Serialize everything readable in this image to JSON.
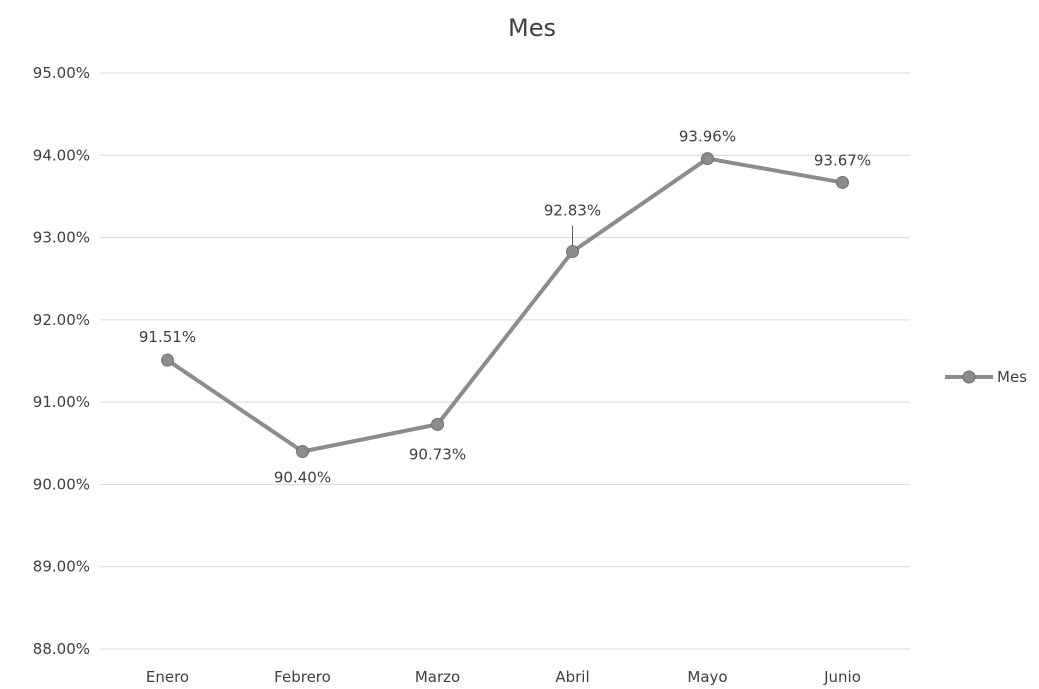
{
  "chart_data": {
    "type": "line",
    "title": "Mes",
    "xlabel": "",
    "ylabel": "",
    "categories": [
      "Enero",
      "Febrero",
      "Marzo",
      "Abril",
      "Mayo",
      "Junio"
    ],
    "series": [
      {
        "name": "Mes",
        "values": [
          91.51,
          90.4,
          90.73,
          92.83,
          93.96,
          93.67
        ],
        "labels": [
          "91.51%",
          "90.40%",
          "90.73%",
          "92.83%",
          "93.96%",
          "93.67%"
        ],
        "color": "#8c8c8c"
      }
    ],
    "ylim": [
      88,
      95
    ],
    "yticks": [
      {
        "value": 95,
        "label": "95.00%"
      },
      {
        "value": 94,
        "label": "94.00%"
      },
      {
        "value": 93,
        "label": "93.00%"
      },
      {
        "value": 92,
        "label": "92.00%"
      },
      {
        "value": 91,
        "label": "91.00%"
      },
      {
        "value": 90,
        "label": "90.00%"
      },
      {
        "value": 89,
        "label": "89.00%"
      },
      {
        "value": 88,
        "label": "88.00%"
      }
    ],
    "grid": true,
    "legend": "right"
  }
}
